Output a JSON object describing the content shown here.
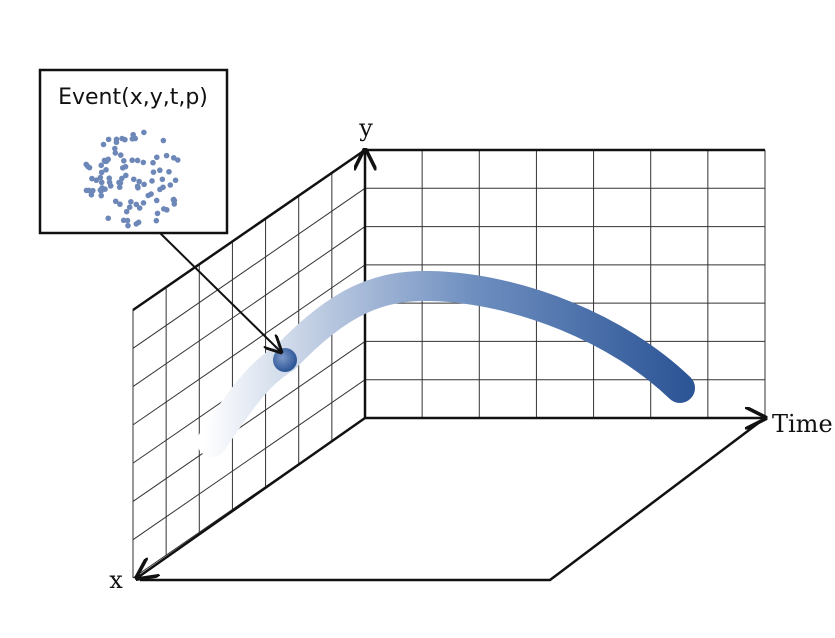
{
  "callout": {
    "label": "Event(x,y,t,p)"
  },
  "axes": {
    "y": "y",
    "time": "Time",
    "x": "x"
  }
}
